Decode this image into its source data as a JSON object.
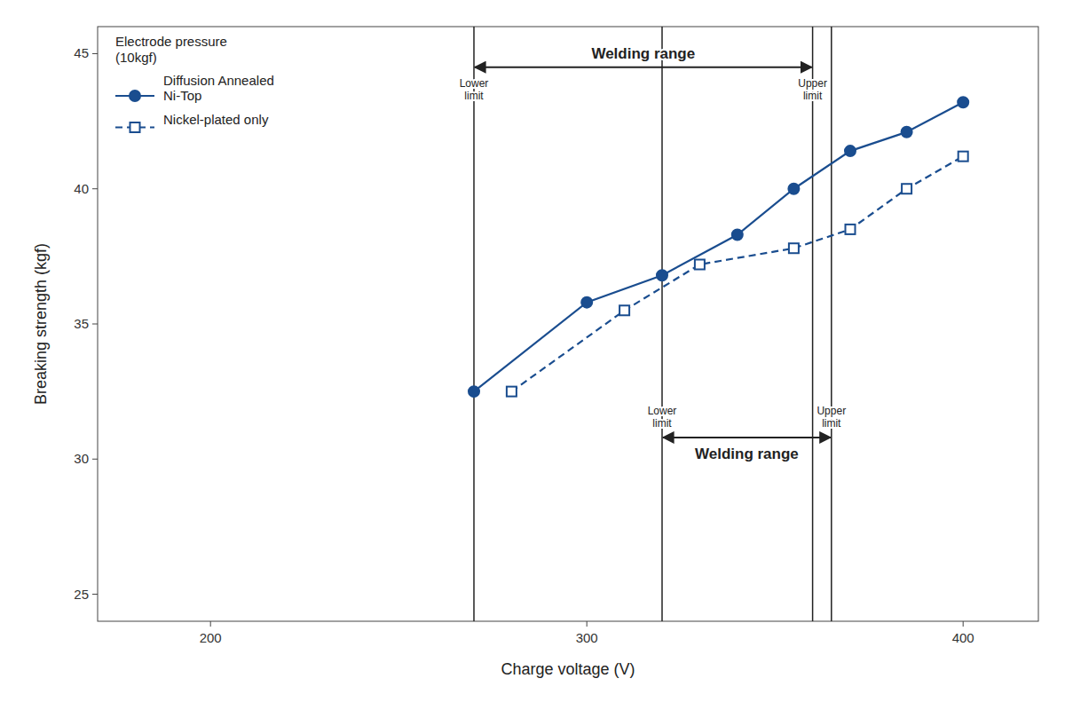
{
  "chart_data": {
    "type": "line",
    "xlabel": "Charge voltage (V)",
    "ylabel": "Breaking strength (kgf)",
    "xlim": [
      170,
      420
    ],
    "ylim": [
      24,
      46
    ],
    "xticks": [
      200,
      300,
      400
    ],
    "yticks": [
      25,
      30,
      35,
      40,
      45
    ],
    "grid": false,
    "legend": "upper left",
    "legend_title": "Electrode pressure\n(10kgf)",
    "series": [
      {
        "name": "Diffusion Annealed\nNi-Top",
        "color": "#1a4d8f",
        "marker": "circle",
        "line_style": "solid",
        "x": [
          270,
          300,
          320,
          340,
          355,
          370,
          385,
          400
        ],
        "values": [
          32.5,
          35.8,
          36.8,
          38.3,
          40.0,
          41.4,
          42.1,
          43.2
        ]
      },
      {
        "name": "Nickel-plated only",
        "color": "#1a4d8f",
        "marker": "open-square",
        "line_style": "dashed",
        "x": [
          280,
          310,
          330,
          355,
          370,
          385,
          400
        ],
        "values": [
          32.5,
          35.5,
          37.2,
          37.8,
          38.5,
          40.0,
          41.2
        ]
      }
    ],
    "annotations": [
      {
        "text": "Welding range",
        "x_lower": 270,
        "x_upper": 360,
        "y": 44.5,
        "lower_text": "Lower\nlimit",
        "upper_text": "Upper\nlimit"
      },
      {
        "text": "Welding range",
        "x_lower": 320,
        "x_upper": 365,
        "y": 30.8,
        "lower_text": "Lower\nlimit",
        "upper_text": "Upper\nlimit"
      }
    ]
  }
}
